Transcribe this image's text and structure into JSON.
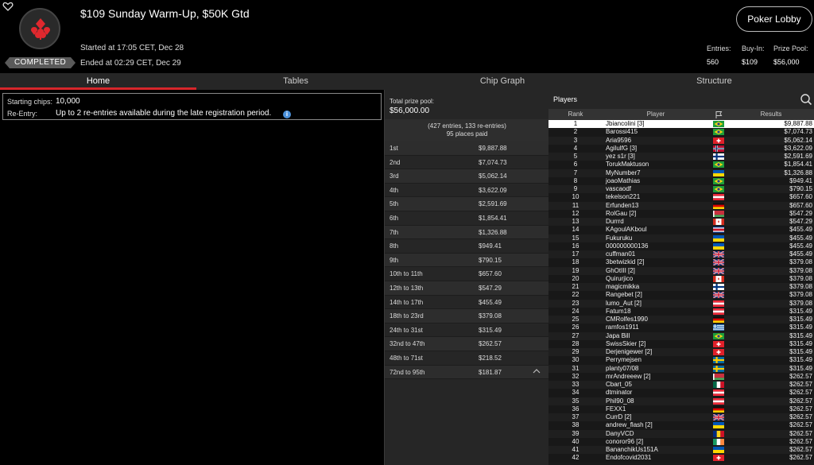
{
  "header": {
    "title": "$109 Sunday Warm-Up, $50K Gtd",
    "status": "COMPLETED",
    "started": "Started at 17:05 CET, Dec 28",
    "ended": "Ended at 02:29 CET, Dec 29",
    "lobby_button": "Poker Lobby",
    "entries_label": "Entries:",
    "entries_value": "560",
    "buyin_label": "Buy-In:",
    "buyin_value": "$109",
    "pool_label": "Prize Pool:",
    "pool_value": "$56,000"
  },
  "tabs": [
    {
      "label": "Home",
      "active": true
    },
    {
      "label": "Tables",
      "active": false
    },
    {
      "label": "Chip Graph",
      "active": false
    },
    {
      "label": "Structure",
      "active": false
    }
  ],
  "info": {
    "starting_chips_label": "Starting chips:",
    "starting_chips_value": "10,000",
    "reentry_label": "Re-Entry:",
    "reentry_value": "Up to 2 re-entries available during the late registration period."
  },
  "prizes": {
    "pool_label": "Total prize pool:",
    "pool_value": "$56,000.00",
    "entries_text": "(427 entries, 133 re-entries)",
    "places_text": "95 places paid",
    "rows": [
      {
        "place": "1st",
        "amount": "$9,887.88"
      },
      {
        "place": "2nd",
        "amount": "$7,074.73"
      },
      {
        "place": "3rd",
        "amount": "$5,062.14"
      },
      {
        "place": "4th",
        "amount": "$3,622.09"
      },
      {
        "place": "5th",
        "amount": "$2,591.69"
      },
      {
        "place": "6th",
        "amount": "$1,854.41"
      },
      {
        "place": "7th",
        "amount": "$1,326.88"
      },
      {
        "place": "8th",
        "amount": "$949.41"
      },
      {
        "place": "9th",
        "amount": "$790.15"
      },
      {
        "place": "10th to 11th",
        "amount": "$657.60"
      },
      {
        "place": "12th to 13th",
        "amount": "$547.29"
      },
      {
        "place": "14th to 17th",
        "amount": "$455.49"
      },
      {
        "place": "18th to 23rd",
        "amount": "$379.08"
      },
      {
        "place": "24th to 31st",
        "amount": "$315.49"
      },
      {
        "place": "32nd to 47th",
        "amount": "$262.57"
      },
      {
        "place": "48th to 71st",
        "amount": "$218.52"
      },
      {
        "place": "72nd to 95th",
        "amount": "$181.87"
      }
    ]
  },
  "players": {
    "title": "Players",
    "col_rank": "Rank",
    "col_player": "Player",
    "col_results": "Results",
    "rows": [
      {
        "rank": "1",
        "name": "Jbiancolini [3]",
        "flag": "br",
        "result": "$9,887.88"
      },
      {
        "rank": "2",
        "name": "Barossi415",
        "flag": "br",
        "result": "$7,074.73"
      },
      {
        "rank": "3",
        "name": "Aria9596",
        "flag": "ch",
        "result": "$5,062.14"
      },
      {
        "rank": "4",
        "name": "AgilulfG [3]",
        "flag": "no",
        "result": "$3,622.09"
      },
      {
        "rank": "5",
        "name": "yez s1r [3]",
        "flag": "fi",
        "result": "$2,591.69"
      },
      {
        "rank": "6",
        "name": "TorukMaktuson",
        "flag": "br",
        "result": "$1,854.41"
      },
      {
        "rank": "7",
        "name": "MyNumber7",
        "flag": "ua",
        "result": "$1,326.88"
      },
      {
        "rank": "8",
        "name": "joaoMathias",
        "flag": "br",
        "result": "$949.41"
      },
      {
        "rank": "9",
        "name": "vascaodf",
        "flag": "br",
        "result": "$790.15"
      },
      {
        "rank": "10",
        "name": "tekelson221",
        "flag": "at",
        "result": "$657.60"
      },
      {
        "rank": "11",
        "name": "Erfunden13",
        "flag": "de",
        "result": "$657.60"
      },
      {
        "rank": "12",
        "name": "RolGau [2]",
        "flag": "by",
        "result": "$547.29"
      },
      {
        "rank": "13",
        "name": "Durrrd",
        "flag": "ca",
        "result": "$547.29"
      },
      {
        "rank": "14",
        "name": "KAgoulAKboul",
        "flag": "cr",
        "result": "$455.49"
      },
      {
        "rank": "15",
        "name": "Fukuruku",
        "flag": "ua",
        "result": "$455.49"
      },
      {
        "rank": "16",
        "name": "000000000136",
        "flag": "ua",
        "result": "$455.49"
      },
      {
        "rank": "17",
        "name": "cuffman01",
        "flag": "gb",
        "result": "$455.49"
      },
      {
        "rank": "18",
        "name": "3betwizkid [2]",
        "flag": "gb",
        "result": "$379.08"
      },
      {
        "rank": "19",
        "name": "GhOtIII [2]",
        "flag": "gb",
        "result": "$379.08"
      },
      {
        "rank": "20",
        "name": "Quirurjico",
        "flag": "ca",
        "result": "$379.08"
      },
      {
        "rank": "21",
        "name": "magicmikka",
        "flag": "fi",
        "result": "$379.08"
      },
      {
        "rank": "22",
        "name": "Rangebet [2]",
        "flag": "gb",
        "result": "$379.08"
      },
      {
        "rank": "23",
        "name": "lumo_Aut [2]",
        "flag": "at",
        "result": "$379.08"
      },
      {
        "rank": "24",
        "name": "Fatum18",
        "flag": "at",
        "result": "$315.49"
      },
      {
        "rank": "25",
        "name": "CMRolfes1990",
        "flag": "de",
        "result": "$315.49"
      },
      {
        "rank": "26",
        "name": "ramfos1911",
        "flag": "gr",
        "result": "$315.49"
      },
      {
        "rank": "27",
        "name": "Japa Bill",
        "flag": "br",
        "result": "$315.49"
      },
      {
        "rank": "28",
        "name": "SwissSkier [2]",
        "flag": "ch",
        "result": "$315.49"
      },
      {
        "rank": "29",
        "name": "Derjenigewer [2]",
        "flag": "ch",
        "result": "$315.49"
      },
      {
        "rank": "30",
        "name": "Perrymejsen",
        "flag": "se",
        "result": "$315.49"
      },
      {
        "rank": "31",
        "name": "planty07/08",
        "flag": "se",
        "result": "$315.49"
      },
      {
        "rank": "32",
        "name": "mrAndreeew [2]",
        "flag": "by",
        "result": "$262.57"
      },
      {
        "rank": "33",
        "name": "Cbart_05",
        "flag": "mx",
        "result": "$262.57"
      },
      {
        "rank": "34",
        "name": "dtminator",
        "flag": "at",
        "result": "$262.57"
      },
      {
        "rank": "35",
        "name": "Phil90_08",
        "flag": "at",
        "result": "$262.57"
      },
      {
        "rank": "36",
        "name": "FEXX1",
        "flag": "de",
        "result": "$262.57"
      },
      {
        "rank": "37",
        "name": "CurrD [2]",
        "flag": "gb",
        "result": "$262.57"
      },
      {
        "rank": "38",
        "name": "andrew_flash [2]",
        "flag": "ua",
        "result": "$262.57"
      },
      {
        "rank": "39",
        "name": "DanyVCD",
        "flag": "ro",
        "result": "$262.57"
      },
      {
        "rank": "40",
        "name": "conoror96 [2]",
        "flag": "ie",
        "result": "$262.57"
      },
      {
        "rank": "41",
        "name": "BananchikUs151A",
        "flag": "ua",
        "result": "$262.57"
      },
      {
        "rank": "42",
        "name": "Endofcovid2031",
        "flag": "ch",
        "result": "$262.57"
      }
    ]
  },
  "colors": {
    "accent": "#d7262b",
    "info": "#4a90d9",
    "background": "#000000",
    "panel": "#262626"
  },
  "icons": {
    "favorite": "heart-outline-icon",
    "logo": "card-suits-icon",
    "info": "info-icon",
    "search": "search-icon",
    "collapse": "chevron-up-icon",
    "flag_column": "flag-icon"
  }
}
